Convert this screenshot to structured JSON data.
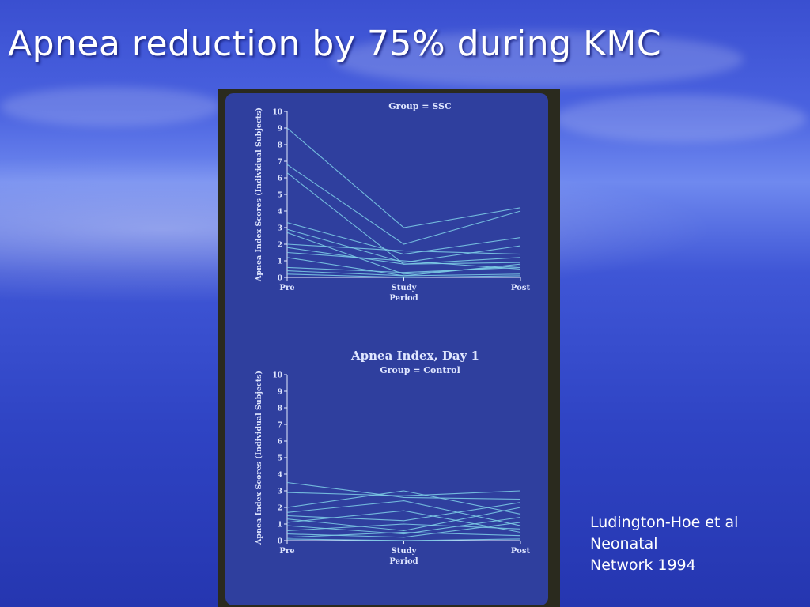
{
  "slide": {
    "title": "Apnea reduction by 75% during KMC",
    "citation_lines": [
      "Ludington-Hoe et al",
      "Neonatal",
      "Network 1994"
    ]
  },
  "colors": {
    "line": "#7fd0e8",
    "axis": "#e6ecff",
    "card": "#2f3f9e"
  },
  "chart_data": [
    {
      "type": "line",
      "title": "",
      "subtitle": "Group = SSC",
      "ylabel": "Apnea Index Scores (Individual Subjects)",
      "xlabel": "Period",
      "categories": [
        "Pre",
        "Study",
        "Post"
      ],
      "yticks": [
        0,
        1,
        2,
        3,
        4,
        5,
        6,
        7,
        8,
        9,
        10
      ],
      "ylim": [
        0,
        10
      ],
      "series": [
        {
          "values": [
            9.0,
            3.0,
            4.2
          ]
        },
        {
          "values": [
            6.8,
            2.0,
            4.0
          ]
        },
        {
          "values": [
            6.3,
            0.8,
            1.2
          ]
        },
        {
          "values": [
            3.3,
            1.4,
            2.4
          ]
        },
        {
          "values": [
            2.9,
            0.9,
            1.9
          ]
        },
        {
          "values": [
            2.7,
            0.2,
            0.7
          ]
        },
        {
          "values": [
            2.0,
            1.6,
            1.4
          ]
        },
        {
          "values": [
            1.8,
            0.8,
            0.9
          ]
        },
        {
          "values": [
            1.5,
            1.0,
            0.5
          ]
        },
        {
          "values": [
            1.2,
            0.1,
            0.8
          ]
        },
        {
          "values": [
            0.6,
            0.3,
            0.6
          ]
        },
        {
          "values": [
            0.4,
            0.1,
            0.2
          ]
        },
        {
          "values": [
            0.2,
            0.0,
            0.1
          ]
        }
      ]
    },
    {
      "type": "line",
      "title": "Apnea Index, Day 1",
      "subtitle": "Group = Control",
      "ylabel": "Apnea Index Scores (Individual Subjects)",
      "xlabel": "Period",
      "categories": [
        "Pre",
        "Study",
        "Post"
      ],
      "yticks": [
        0,
        1,
        2,
        3,
        4,
        5,
        6,
        7,
        8,
        9,
        10
      ],
      "ylim": [
        0,
        10
      ],
      "series": [
        {
          "values": [
            3.5,
            2.6,
            2.5
          ]
        },
        {
          "values": [
            2.9,
            2.7,
            3.0
          ]
        },
        {
          "values": [
            2.0,
            3.0,
            1.6
          ]
        },
        {
          "values": [
            1.7,
            2.4,
            0.9
          ]
        },
        {
          "values": [
            1.5,
            1.2,
            2.3
          ]
        },
        {
          "values": [
            1.3,
            0.6,
            2.0
          ]
        },
        {
          "values": [
            1.1,
            1.8,
            0.5
          ]
        },
        {
          "values": [
            0.9,
            0.4,
            1.4
          ]
        },
        {
          "values": [
            0.6,
            1.0,
            0.7
          ]
        },
        {
          "values": [
            0.4,
            0.2,
            1.1
          ]
        },
        {
          "values": [
            0.2,
            0.5,
            0.3
          ]
        },
        {
          "values": [
            0.1,
            0.0,
            0.1
          ]
        }
      ]
    }
  ]
}
